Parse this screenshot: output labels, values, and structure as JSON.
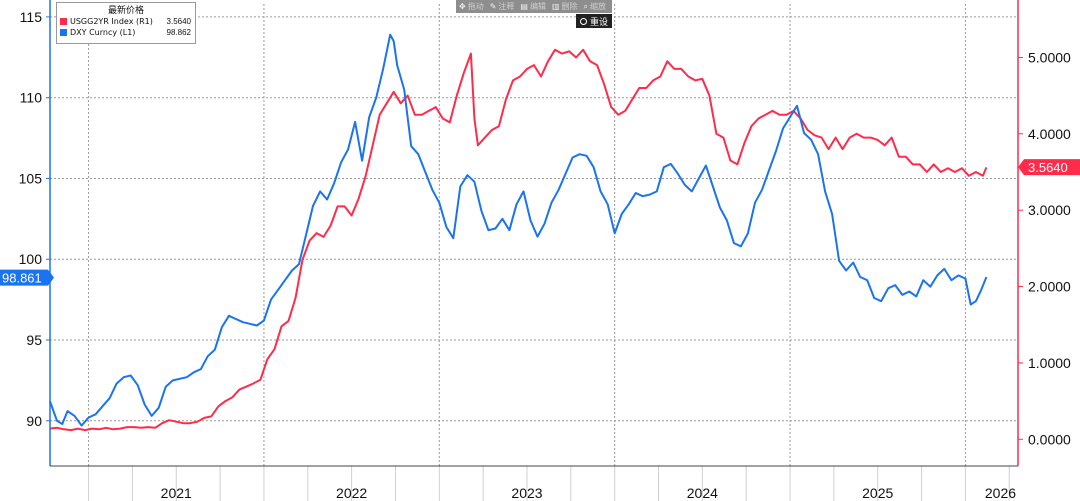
{
  "legend": {
    "title": "最新价格",
    "series": [
      {
        "name": "USGG2YR Index  (R1)",
        "value": "3.5640",
        "color": "#ff2b4a"
      },
      {
        "name": "DXY Curncy  (L1)",
        "value": "98.862",
        "color": "#1a73f0"
      }
    ]
  },
  "toolbar": {
    "items": [
      {
        "icon": "move-icon",
        "label": "拖动"
      },
      {
        "icon": "pencil-icon",
        "label": "注释"
      },
      {
        "icon": "edit-icon",
        "label": "编辑"
      },
      {
        "icon": "delete-icon",
        "label": "删除"
      },
      {
        "icon": "zoom-icon",
        "label": "缩放"
      }
    ],
    "reset_label": "重设"
  },
  "chart_data": {
    "type": "line",
    "x_ticks": [
      "2021",
      "2022",
      "2023",
      "2024",
      "2025",
      "2026"
    ],
    "left_axis": {
      "ticks": [
        "90",
        "95",
        "100",
        "105",
        "110",
        "115"
      ],
      "min": 87.2,
      "max": 115.8
    },
    "right_axis": {
      "ticks": [
        "0.0000",
        "1.0000",
        "2.0000",
        "3.0000",
        "4.0000",
        "5.0000"
      ],
      "min": -0.35,
      "max": 5.7
    },
    "x_range": [
      2020.78,
      2026.3
    ],
    "last_value_labels": {
      "left": "98.861",
      "right": "3.5640"
    },
    "series": [
      {
        "name": "DXY Curncy  (L1)",
        "axis": "left",
        "color": "#1a73f0",
        "points": [
          [
            2020.78,
            91.2
          ],
          [
            2020.82,
            90.0
          ],
          [
            2020.85,
            89.8
          ],
          [
            2020.88,
            90.6
          ],
          [
            2020.92,
            90.3
          ],
          [
            2020.96,
            89.7
          ],
          [
            2021.0,
            90.2
          ],
          [
            2021.04,
            90.4
          ],
          [
            2021.08,
            90.9
          ],
          [
            2021.12,
            91.4
          ],
          [
            2021.16,
            92.3
          ],
          [
            2021.2,
            92.7
          ],
          [
            2021.24,
            92.8
          ],
          [
            2021.28,
            92.2
          ],
          [
            2021.32,
            91.0
          ],
          [
            2021.36,
            90.3
          ],
          [
            2021.4,
            90.8
          ],
          [
            2021.44,
            92.1
          ],
          [
            2021.48,
            92.5
          ],
          [
            2021.52,
            92.6
          ],
          [
            2021.56,
            92.7
          ],
          [
            2021.6,
            93.0
          ],
          [
            2021.64,
            93.2
          ],
          [
            2021.68,
            94.0
          ],
          [
            2021.72,
            94.4
          ],
          [
            2021.76,
            95.8
          ],
          [
            2021.8,
            96.5
          ],
          [
            2021.84,
            96.3
          ],
          [
            2021.88,
            96.1
          ],
          [
            2021.92,
            96.0
          ],
          [
            2021.96,
            95.9
          ],
          [
            2022.0,
            96.2
          ],
          [
            2022.04,
            97.5
          ],
          [
            2022.08,
            98.1
          ],
          [
            2022.12,
            98.7
          ],
          [
            2022.16,
            99.3
          ],
          [
            2022.2,
            99.7
          ],
          [
            2022.24,
            101.5
          ],
          [
            2022.28,
            103.3
          ],
          [
            2022.32,
            104.2
          ],
          [
            2022.36,
            103.7
          ],
          [
            2022.4,
            104.7
          ],
          [
            2022.44,
            106.0
          ],
          [
            2022.48,
            106.8
          ],
          [
            2022.52,
            108.5
          ],
          [
            2022.56,
            106.1
          ],
          [
            2022.6,
            108.8
          ],
          [
            2022.64,
            110.0
          ],
          [
            2022.68,
            111.8
          ],
          [
            2022.72,
            113.9
          ],
          [
            2022.74,
            113.5
          ],
          [
            2022.76,
            112.0
          ],
          [
            2022.8,
            110.5
          ],
          [
            2022.84,
            107.0
          ],
          [
            2022.88,
            106.5
          ],
          [
            2022.92,
            105.4
          ],
          [
            2022.96,
            104.3
          ],
          [
            2023.0,
            103.5
          ],
          [
            2023.04,
            102.0
          ],
          [
            2023.08,
            101.3
          ],
          [
            2023.12,
            104.5
          ],
          [
            2023.16,
            105.2
          ],
          [
            2023.2,
            104.8
          ],
          [
            2023.24,
            103.0
          ],
          [
            2023.28,
            101.8
          ],
          [
            2023.32,
            101.9
          ],
          [
            2023.36,
            102.5
          ],
          [
            2023.4,
            101.8
          ],
          [
            2023.44,
            103.4
          ],
          [
            2023.48,
            104.2
          ],
          [
            2023.52,
            102.4
          ],
          [
            2023.56,
            101.4
          ],
          [
            2023.6,
            102.2
          ],
          [
            2023.64,
            103.5
          ],
          [
            2023.68,
            104.3
          ],
          [
            2023.72,
            105.3
          ],
          [
            2023.76,
            106.3
          ],
          [
            2023.8,
            106.5
          ],
          [
            2023.84,
            106.4
          ],
          [
            2023.88,
            105.7
          ],
          [
            2023.92,
            104.2
          ],
          [
            2023.96,
            103.4
          ],
          [
            2024.0,
            101.6
          ],
          [
            2024.04,
            102.8
          ],
          [
            2024.08,
            103.4
          ],
          [
            2024.12,
            104.1
          ],
          [
            2024.16,
            103.9
          ],
          [
            2024.2,
            104.0
          ],
          [
            2024.24,
            104.2
          ],
          [
            2024.28,
            105.7
          ],
          [
            2024.32,
            105.9
          ],
          [
            2024.36,
            105.3
          ],
          [
            2024.4,
            104.6
          ],
          [
            2024.44,
            104.2
          ],
          [
            2024.48,
            105.0
          ],
          [
            2024.52,
            105.8
          ],
          [
            2024.56,
            104.5
          ],
          [
            2024.6,
            103.2
          ],
          [
            2024.64,
            102.4
          ],
          [
            2024.68,
            101.0
          ],
          [
            2024.72,
            100.8
          ],
          [
            2024.76,
            101.6
          ],
          [
            2024.8,
            103.5
          ],
          [
            2024.84,
            104.3
          ],
          [
            2024.88,
            105.5
          ],
          [
            2024.92,
            106.7
          ],
          [
            2024.96,
            108.1
          ],
          [
            2025.0,
            108.8
          ],
          [
            2025.04,
            109.5
          ],
          [
            2025.08,
            107.8
          ],
          [
            2025.12,
            107.4
          ],
          [
            2025.16,
            106.5
          ],
          [
            2025.2,
            104.2
          ],
          [
            2025.24,
            102.8
          ],
          [
            2025.28,
            99.9
          ],
          [
            2025.32,
            99.3
          ],
          [
            2025.36,
            99.8
          ],
          [
            2025.4,
            98.9
          ],
          [
            2025.44,
            98.7
          ],
          [
            2025.48,
            97.6
          ],
          [
            2025.52,
            97.4
          ],
          [
            2025.56,
            98.2
          ],
          [
            2025.6,
            98.4
          ],
          [
            2025.64,
            97.8
          ],
          [
            2025.68,
            98.0
          ],
          [
            2025.72,
            97.7
          ],
          [
            2025.76,
            98.7
          ],
          [
            2025.8,
            98.3
          ],
          [
            2025.84,
            99.0
          ],
          [
            2025.88,
            99.4
          ],
          [
            2025.92,
            98.7
          ],
          [
            2025.96,
            99.0
          ],
          [
            2026.0,
            98.8
          ],
          [
            2026.03,
            97.2
          ],
          [
            2026.06,
            97.4
          ],
          [
            2026.09,
            98.1
          ],
          [
            2026.12,
            98.9
          ]
        ]
      },
      {
        "name": "USGG2YR Index  (R1)",
        "axis": "right",
        "color": "#ff2b4a",
        "points": [
          [
            2020.78,
            0.14
          ],
          [
            2020.82,
            0.15
          ],
          [
            2020.86,
            0.13
          ],
          [
            2020.9,
            0.12
          ],
          [
            2020.94,
            0.14
          ],
          [
            2020.98,
            0.12
          ],
          [
            2021.02,
            0.14
          ],
          [
            2021.06,
            0.13
          ],
          [
            2021.1,
            0.15
          ],
          [
            2021.14,
            0.13
          ],
          [
            2021.18,
            0.14
          ],
          [
            2021.22,
            0.16
          ],
          [
            2021.26,
            0.16
          ],
          [
            2021.3,
            0.15
          ],
          [
            2021.34,
            0.16
          ],
          [
            2021.38,
            0.15
          ],
          [
            2021.42,
            0.21
          ],
          [
            2021.46,
            0.25
          ],
          [
            2021.5,
            0.23
          ],
          [
            2021.54,
            0.21
          ],
          [
            2021.58,
            0.21
          ],
          [
            2021.62,
            0.23
          ],
          [
            2021.66,
            0.28
          ],
          [
            2021.7,
            0.3
          ],
          [
            2021.74,
            0.43
          ],
          [
            2021.78,
            0.5
          ],
          [
            2021.82,
            0.55
          ],
          [
            2021.86,
            0.65
          ],
          [
            2021.9,
            0.69
          ],
          [
            2021.94,
            0.73
          ],
          [
            2021.98,
            0.78
          ],
          [
            2022.02,
            1.05
          ],
          [
            2022.06,
            1.18
          ],
          [
            2022.1,
            1.48
          ],
          [
            2022.14,
            1.55
          ],
          [
            2022.18,
            1.85
          ],
          [
            2022.22,
            2.35
          ],
          [
            2022.26,
            2.6
          ],
          [
            2022.3,
            2.7
          ],
          [
            2022.34,
            2.65
          ],
          [
            2022.38,
            2.8
          ],
          [
            2022.42,
            3.05
          ],
          [
            2022.46,
            3.05
          ],
          [
            2022.5,
            2.93
          ],
          [
            2022.54,
            3.15
          ],
          [
            2022.58,
            3.45
          ],
          [
            2022.62,
            3.85
          ],
          [
            2022.66,
            4.25
          ],
          [
            2022.7,
            4.4
          ],
          [
            2022.74,
            4.55
          ],
          [
            2022.78,
            4.4
          ],
          [
            2022.82,
            4.5
          ],
          [
            2022.86,
            4.25
          ],
          [
            2022.9,
            4.25
          ],
          [
            2022.94,
            4.3
          ],
          [
            2022.98,
            4.35
          ],
          [
            2023.02,
            4.2
          ],
          [
            2023.06,
            4.15
          ],
          [
            2023.1,
            4.5
          ],
          [
            2023.14,
            4.8
          ],
          [
            2023.18,
            5.05
          ],
          [
            2023.2,
            4.2
          ],
          [
            2023.22,
            3.85
          ],
          [
            2023.26,
            3.95
          ],
          [
            2023.3,
            4.05
          ],
          [
            2023.34,
            4.1
          ],
          [
            2023.38,
            4.45
          ],
          [
            2023.42,
            4.7
          ],
          [
            2023.46,
            4.75
          ],
          [
            2023.5,
            4.85
          ],
          [
            2023.54,
            4.9
          ],
          [
            2023.58,
            4.75
          ],
          [
            2023.62,
            4.95
          ],
          [
            2023.66,
            5.1
          ],
          [
            2023.7,
            5.05
          ],
          [
            2023.74,
            5.08
          ],
          [
            2023.78,
            5.0
          ],
          [
            2023.82,
            5.1
          ],
          [
            2023.86,
            4.95
          ],
          [
            2023.9,
            4.9
          ],
          [
            2023.94,
            4.65
          ],
          [
            2023.98,
            4.35
          ],
          [
            2024.02,
            4.25
          ],
          [
            2024.06,
            4.3
          ],
          [
            2024.1,
            4.45
          ],
          [
            2024.14,
            4.6
          ],
          [
            2024.18,
            4.6
          ],
          [
            2024.22,
            4.7
          ],
          [
            2024.26,
            4.75
          ],
          [
            2024.3,
            4.95
          ],
          [
            2024.34,
            4.85
          ],
          [
            2024.38,
            4.85
          ],
          [
            2024.42,
            4.75
          ],
          [
            2024.46,
            4.7
          ],
          [
            2024.5,
            4.72
          ],
          [
            2024.54,
            4.5
          ],
          [
            2024.58,
            4.0
          ],
          [
            2024.62,
            3.95
          ],
          [
            2024.66,
            3.65
          ],
          [
            2024.7,
            3.6
          ],
          [
            2024.74,
            3.88
          ],
          [
            2024.78,
            4.1
          ],
          [
            2024.82,
            4.2
          ],
          [
            2024.86,
            4.25
          ],
          [
            2024.9,
            4.3
          ],
          [
            2024.94,
            4.25
          ],
          [
            2024.98,
            4.25
          ],
          [
            2025.02,
            4.3
          ],
          [
            2025.06,
            4.2
          ],
          [
            2025.1,
            4.05
          ],
          [
            2025.14,
            3.98
          ],
          [
            2025.18,
            3.95
          ],
          [
            2025.22,
            3.8
          ],
          [
            2025.26,
            3.95
          ],
          [
            2025.3,
            3.8
          ],
          [
            2025.34,
            3.95
          ],
          [
            2025.38,
            4.0
          ],
          [
            2025.42,
            3.95
          ],
          [
            2025.46,
            3.95
          ],
          [
            2025.5,
            3.92
          ],
          [
            2025.54,
            3.85
          ],
          [
            2025.58,
            3.95
          ],
          [
            2025.62,
            3.7
          ],
          [
            2025.66,
            3.7
          ],
          [
            2025.7,
            3.6
          ],
          [
            2025.74,
            3.6
          ],
          [
            2025.78,
            3.5
          ],
          [
            2025.82,
            3.6
          ],
          [
            2025.86,
            3.5
          ],
          [
            2025.9,
            3.55
          ],
          [
            2025.94,
            3.5
          ],
          [
            2025.98,
            3.55
          ],
          [
            2026.02,
            3.45
          ],
          [
            2026.06,
            3.5
          ],
          [
            2026.1,
            3.45
          ],
          [
            2026.12,
            3.56
          ]
        ]
      }
    ]
  }
}
